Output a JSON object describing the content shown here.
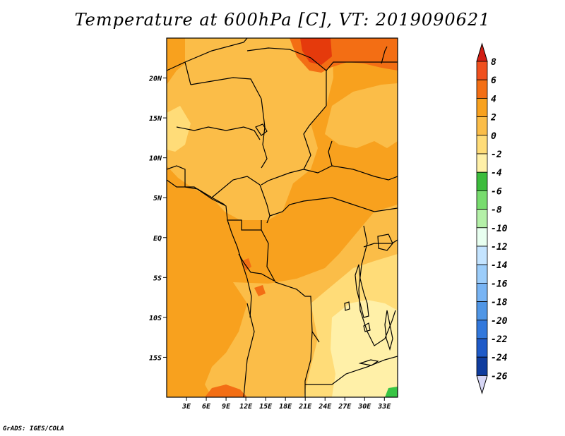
{
  "title": "Temperature at 600hPa [C], VT: 2019090621",
  "credit": "GrADS: IGES/COLA",
  "map": {
    "lon_range": [
      0,
      35
    ],
    "lat_range": [
      -20,
      25
    ],
    "lon_ticks": [
      {
        "lon": 3,
        "label": "3E"
      },
      {
        "lon": 6,
        "label": "6E"
      },
      {
        "lon": 9,
        "label": "9E"
      },
      {
        "lon": 12,
        "label": "12E"
      },
      {
        "lon": 15,
        "label": "15E"
      },
      {
        "lon": 18,
        "label": "18E"
      },
      {
        "lon": 21,
        "label": "21E"
      },
      {
        "lon": 24,
        "label": "24E"
      },
      {
        "lon": 27,
        "label": "27E"
      },
      {
        "lon": 30,
        "label": "30E"
      },
      {
        "lon": 33,
        "label": "33E"
      }
    ],
    "lat_ticks": [
      {
        "lat": 20,
        "label": "20N"
      },
      {
        "lat": 15,
        "label": "15N"
      },
      {
        "lat": 10,
        "label": "10N"
      },
      {
        "lat": 5,
        "label": "5N"
      },
      {
        "lat": 0,
        "label": "EQ"
      },
      {
        "lat": -5,
        "label": "5S"
      },
      {
        "lat": -10,
        "label": "10S"
      },
      {
        "lat": -15,
        "label": "15S"
      }
    ],
    "field": "filled contours of 600hPa temperature, mostly 0 to 6 C",
    "colors": {
      "c_m4_m2": "#fff0a8",
      "c_m2_0": "#ffdc78",
      "c_0_2": "#fbbd48",
      "c_2_4": "#f8a11e",
      "c_4_6": "#f36e14",
      "c_6_8": "#e53a0c",
      "c_green": "#38c444",
      "border": "#000000"
    }
  },
  "colorbar": {
    "levels": [
      "8",
      "6",
      "4",
      "2",
      "0",
      "-2",
      "-4",
      "-6",
      "-8",
      "-10",
      "-12",
      "-14",
      "-16",
      "-18",
      "-20",
      "-22",
      "-24",
      "-26"
    ],
    "colors": [
      "#e03018",
      "#f0501e",
      "#f36e14",
      "#f8a11e",
      "#fbbd48",
      "#ffdc78",
      "#fff0a8",
      "#3cbc3c",
      "#78dc6e",
      "#b4f0a8",
      "#e8fff0",
      "#c4e4ff",
      "#9ccdfa",
      "#78b4f4",
      "#5096e6",
      "#3278dc",
      "#1e5ac8",
      "#0f3c9e",
      "#0a1e64",
      "#d6d6f5"
    ],
    "top_arrow_color": "#d21e14",
    "bottom_arrow_color": "#d6d6f5"
  }
}
